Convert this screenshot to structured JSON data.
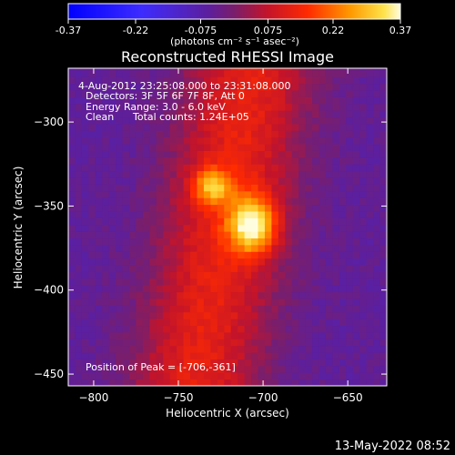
{
  "chart_data": {
    "type": "heatmap",
    "title": "Reconstructed RHESSI Image",
    "xlabel": "Heliocentric X (arcsec)",
    "ylabel": "Heliocentric Y (arcsec)",
    "xlim": [
      -815,
      -627
    ],
    "ylim": [
      -457,
      -268
    ],
    "xticks": [
      -800,
      -750,
      -700,
      -650
    ],
    "yticks": [
      -300,
      -350,
      -400,
      -450
    ],
    "colorbar": {
      "min": -0.37,
      "max": 0.37,
      "ticks": [
        {
          "value": -0.37,
          "label": "-0.37"
        },
        {
          "value": -0.22,
          "label": "-0.22"
        },
        {
          "value": -0.075,
          "label": "-0.075"
        },
        {
          "value": 0.075,
          "label": "0.075"
        },
        {
          "value": 0.22,
          "label": "0.22"
        },
        {
          "value": 0.37,
          "label": "0.37"
        }
      ],
      "unit_label": "(photons cm⁻² s⁻¹ asec⁻²)"
    },
    "annotations": {
      "time_range": "4-Aug-2012 23:25:08.000 to 23:31:08.000",
      "detectors": "Detectors: 3F 5F 6F 7F 8F, Att 0",
      "energy": "Energy Range: 3.0 - 6.0 keV",
      "algorithm": "Clean",
      "counts": "Total counts: 1.24E+05",
      "peak": "Position of Peak = [-706,-361]"
    },
    "peak": {
      "x": -706,
      "y": -361
    },
    "secondary_peak": {
      "x": -730,
      "y": -338
    },
    "footer": "13-May-2022 08:52"
  }
}
